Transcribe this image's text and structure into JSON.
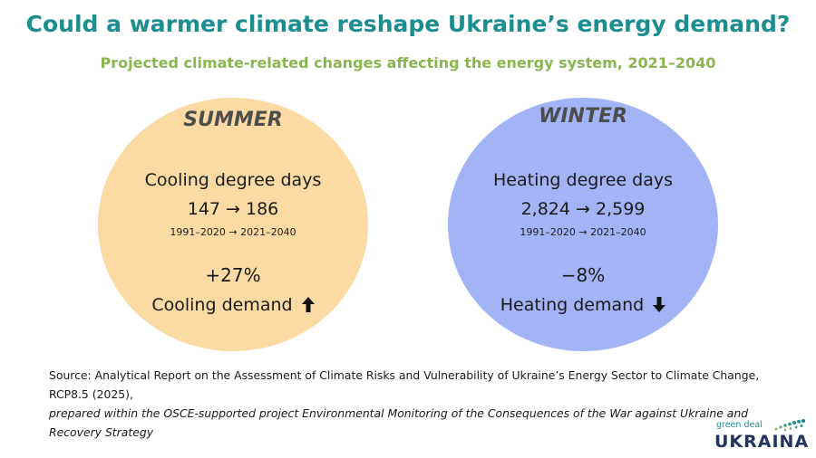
{
  "header": {
    "title": "Could a warmer climate reshape Ukraine’s energy demand?",
    "subtitle": "Projected climate-related changes affecting the energy system, 2021–2040"
  },
  "summer": {
    "season": "SUMMER",
    "metric": "Cooling degree days",
    "values": "147 → 186",
    "periods": "1991–2020 → 2021–2040",
    "change": "+27%",
    "demand": "Cooling demand",
    "arrow_icon": "arrow-up-icon",
    "color": "#fbdba3"
  },
  "winter": {
    "season": "WINTER",
    "metric": "Heating degree days",
    "values": "2,824 → 2,599",
    "periods": "1991–2020 → 2021–2040",
    "change": "−8%",
    "demand": "Heating demand",
    "arrow_icon": "arrow-down-icon",
    "color": "#a3b4f6"
  },
  "source": {
    "line1": "Source: Analytical Report on the Assessment of Climate Risks and Vulnerability of Ukraine’s Energy Sector to Climate Change, RCP8.5 (2025),",
    "line2": "prepared within the OSCE-supported project Environmental Monitoring of the Consequences of the War against Ukraine and Recovery Strategy"
  },
  "logo": {
    "small": "green deal",
    "big": "UKRAINA"
  }
}
